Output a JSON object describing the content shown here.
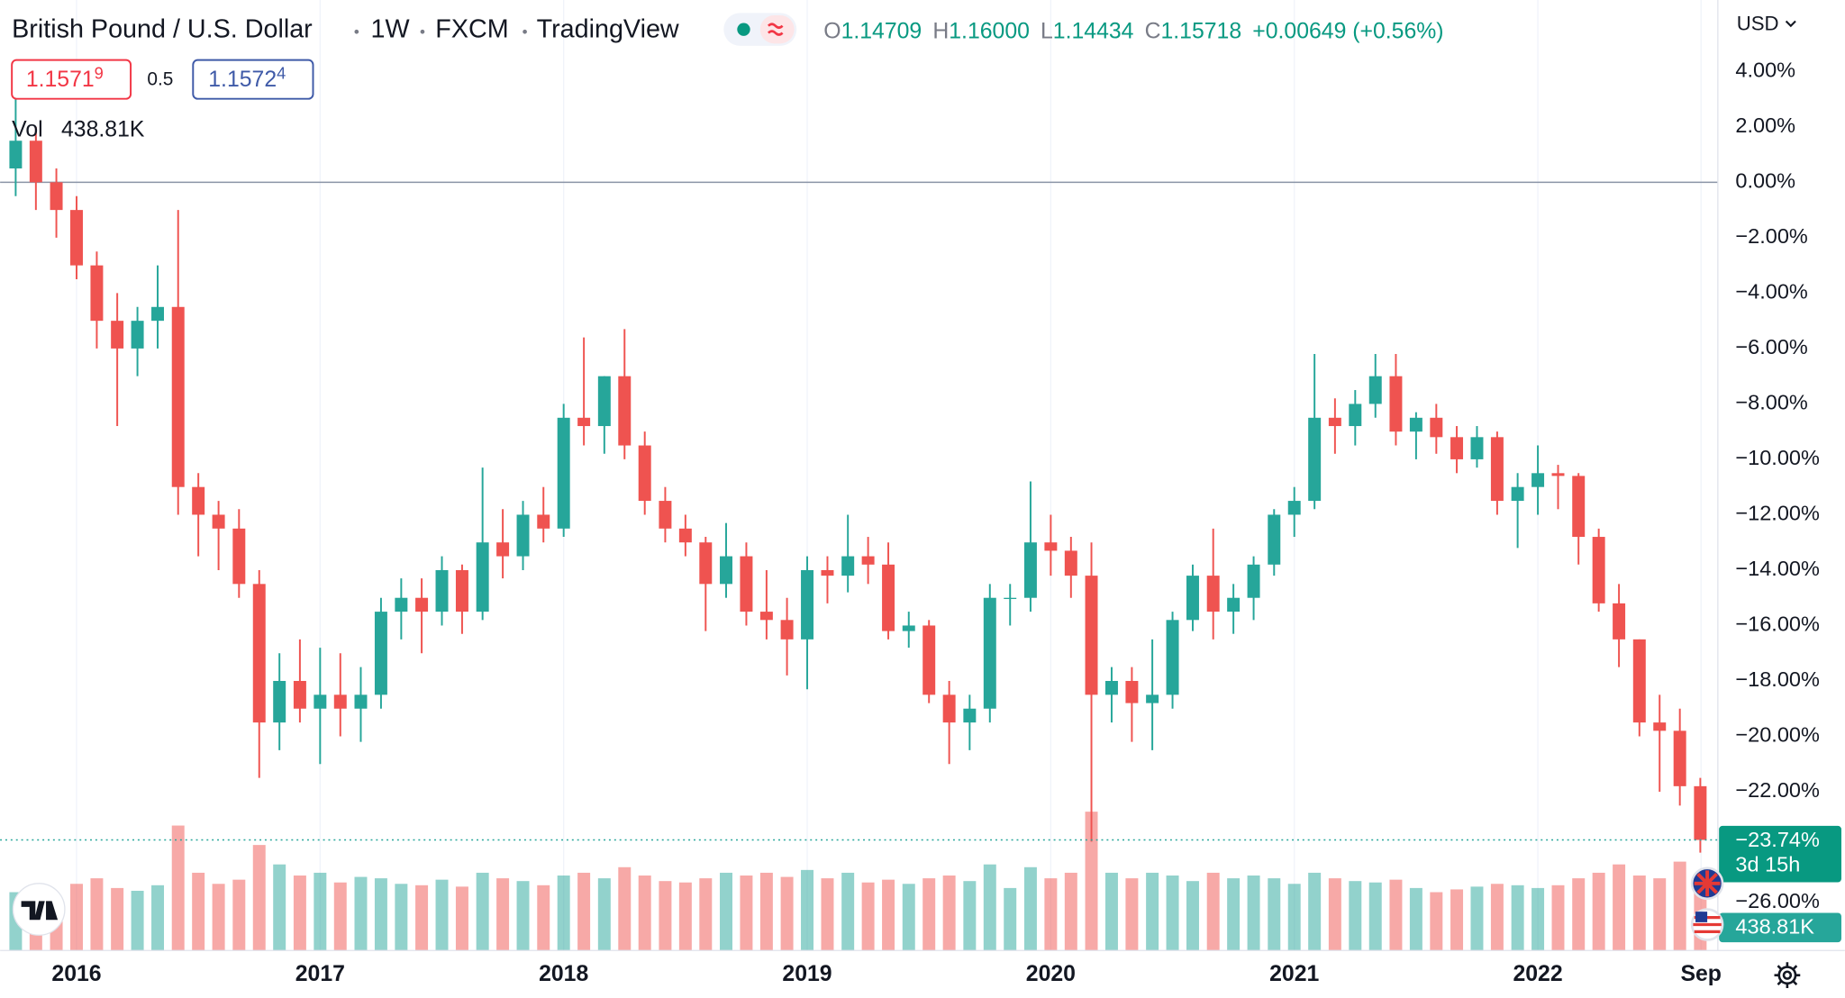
{
  "header": {
    "symbol": "British Pound / U.S. Dollar",
    "interval": "1W",
    "exchange": "FXCM",
    "source": "TradingView",
    "ohlc": [
      {
        "label": "O",
        "value": "1.14709"
      },
      {
        "label": "H",
        "value": "1.16000"
      },
      {
        "label": "L",
        "value": "1.14434"
      },
      {
        "label": "C",
        "value": "1.15718"
      }
    ],
    "change": "+0.00649 (+0.56%)",
    "sell": {
      "main": "1.1571",
      "sup": "9"
    },
    "spread": "0.5",
    "buy": {
      "main": "1.1572",
      "sup": "4"
    },
    "currency": "USD"
  },
  "chart_data": {
    "type": "candlestick",
    "colors": {
      "up": "#26a69a",
      "down": "#ef5350"
    },
    "x": [
      2015.75,
      2015.833,
      2015.917,
      2016,
      2016.083,
      2016.167,
      2016.25,
      2016.333,
      2016.417,
      2016.5,
      2016.583,
      2016.667,
      2016.75,
      2016.833,
      2016.917,
      2017,
      2017.083,
      2017.167,
      2017.25,
      2017.333,
      2017.417,
      2017.5,
      2017.583,
      2017.667,
      2017.75,
      2017.833,
      2017.917,
      2018,
      2018.083,
      2018.167,
      2018.25,
      2018.333,
      2018.417,
      2018.5,
      2018.583,
      2018.667,
      2018.75,
      2018.833,
      2018.917,
      2019,
      2019.083,
      2019.167,
      2019.25,
      2019.333,
      2019.417,
      2019.5,
      2019.583,
      2019.667,
      2019.75,
      2019.833,
      2019.917,
      2020,
      2020.083,
      2020.167,
      2020.25,
      2020.333,
      2020.417,
      2020.5,
      2020.583,
      2020.667,
      2020.75,
      2020.833,
      2020.917,
      2021,
      2021.083,
      2021.167,
      2021.25,
      2021.333,
      2021.417,
      2021.5,
      2021.583,
      2021.667,
      2021.75,
      2021.833,
      2021.917,
      2022,
      2022.083,
      2022.167,
      2022.25,
      2022.333,
      2022.417,
      2022.5,
      2022.583,
      2022.667
    ],
    "open": [
      0.5,
      1.5,
      0,
      -1,
      -3,
      -5,
      -6,
      -5,
      -4.5,
      -11,
      -12,
      -12.5,
      -14.5,
      -19.5,
      -18,
      -19,
      -18.5,
      -19,
      -18.5,
      -15.5,
      -15,
      -15.5,
      -14,
      -15.5,
      -13,
      -13.5,
      -12,
      -12.5,
      -8.5,
      -8.8,
      -7,
      -9.5,
      -11.5,
      -12.5,
      -13,
      -14.5,
      -13.5,
      -15.5,
      -15.8,
      -16.5,
      -14,
      -14.2,
      -13.5,
      -13.8,
      -16.2,
      -16,
      -18.5,
      -19.5,
      -19,
      -15,
      -15,
      -13,
      -13.3,
      -14.2,
      -18.5,
      -18,
      -18.8,
      -18.5,
      -15.8,
      -14.2,
      -15.5,
      -15,
      -13.8,
      -12,
      -11.5,
      -8.5,
      -8.8,
      -8,
      -7,
      -9,
      -8.5,
      -9.2,
      -10,
      -9.2,
      -11.5,
      -11,
      -10.5,
      -10.6,
      -12.8,
      -15.2,
      -16.5,
      -19.5,
      -19.8,
      -21.8
    ],
    "high": [
      3,
      2,
      0.5,
      -0.5,
      -2.5,
      -4,
      -4.5,
      -3,
      -1,
      -10.5,
      -11.5,
      -11.8,
      -14,
      -17,
      -16.5,
      -16.8,
      -17,
      -17.5,
      -15,
      -14.3,
      -14.3,
      -13.5,
      -13.8,
      -10.3,
      -11.8,
      -11.5,
      -11,
      -8,
      -5.6,
      -7,
      -5.3,
      -9,
      -11,
      -12,
      -12.8,
      -12.3,
      -13,
      -14,
      -15,
      -13.5,
      -13.5,
      -12,
      -12.8,
      -13,
      -15.5,
      -15.8,
      -18,
      -18.5,
      -14.5,
      -14.5,
      -10.8,
      -12,
      -12.8,
      -13,
      -17.5,
      -17.5,
      -16.5,
      -15.5,
      -13.8,
      -12.5,
      -14.5,
      -13.5,
      -11.8,
      -11,
      -6.2,
      -7.8,
      -7.5,
      -6.2,
      -6.2,
      -8.3,
      -8,
      -8.8,
      -8.8,
      -9,
      -10.5,
      -9.5,
      -10.2,
      -10.5,
      -12.5,
      -14.5,
      -16.5,
      -18.5,
      -19,
      -21.5
    ],
    "low": [
      -0.5,
      -1,
      -2,
      -3.5,
      -6,
      -8.8,
      -7,
      -6,
      -12,
      -13.5,
      -14,
      -15,
      -21.5,
      -20.5,
      -19.5,
      -21,
      -20,
      -20.2,
      -19,
      -16.5,
      -17,
      -16,
      -16.3,
      -15.8,
      -14.3,
      -14,
      -13,
      -12.8,
      -9.5,
      -9.8,
      -10,
      -12,
      -13,
      -13.5,
      -16.2,
      -15,
      -16,
      -16.5,
      -17.8,
      -18.3,
      -15.2,
      -14.8,
      -14.5,
      -16.5,
      -16.8,
      -18.8,
      -21,
      -20.5,
      -19.5,
      -16,
      -15.5,
      -14.2,
      -15,
      -23.8,
      -19.5,
      -20.2,
      -20.5,
      -19,
      -16.2,
      -16.5,
      -16.3,
      -15.8,
      -14.2,
      -12.8,
      -11.8,
      -9.8,
      -9.5,
      -8.5,
      -9.5,
      -10,
      -9.8,
      -10.5,
      -10.3,
      -12,
      -13.2,
      -12,
      -11.8,
      -13.8,
      -15.5,
      -17.5,
      -20,
      -22,
      -22.5,
      -24.2
    ],
    "close": [
      1.5,
      0,
      -1,
      -3,
      -5,
      -6,
      -5,
      -4.5,
      -11,
      -12,
      -12.5,
      -14.5,
      -19.5,
      -18,
      -19,
      -18.5,
      -19,
      -18.5,
      -15.5,
      -15,
      -15.5,
      -14,
      -15.5,
      -13,
      -13.5,
      -12,
      -12.5,
      -8.5,
      -8.8,
      -7,
      -9.5,
      -11.5,
      -12.5,
      -13,
      -14.5,
      -13.5,
      -15.5,
      -15.8,
      -16.5,
      -14,
      -14.2,
      -13.5,
      -13.8,
      -16.2,
      -16,
      -18.5,
      -19.5,
      -19,
      -15,
      -15,
      -13,
      -13.3,
      -14.2,
      -18.5,
      -18,
      -18.8,
      -18.5,
      -15.8,
      -14.2,
      -15.5,
      -15,
      -13.8,
      -12,
      -11.5,
      -8.5,
      -8.8,
      -8,
      -7,
      -9,
      -8.5,
      -9.2,
      -10,
      -9.2,
      -11.5,
      -11,
      -10.5,
      -10.6,
      -12.8,
      -15.2,
      -16.5,
      -19.5,
      -19.8,
      -21.8,
      -23.74
    ],
    "volume": [
      420,
      380,
      350,
      480,
      520,
      450,
      430,
      470,
      900,
      560,
      480,
      510,
      760,
      620,
      540,
      560,
      490,
      530,
      520,
      480,
      470,
      510,
      460,
      560,
      520,
      500,
      470,
      540,
      560,
      520,
      600,
      540,
      500,
      490,
      520,
      560,
      540,
      560,
      530,
      580,
      520,
      560,
      490,
      510,
      480,
      520,
      540,
      500,
      620,
      450,
      600,
      520,
      560,
      1000,
      560,
      520,
      560,
      540,
      500,
      560,
      520,
      540,
      520,
      480,
      560,
      520,
      500,
      490,
      510,
      450,
      420,
      440,
      460,
      480,
      470,
      450,
      470,
      520,
      560,
      620,
      540,
      520,
      640,
      438.81
    ],
    "volume_title": "Vol",
    "volume_label": "438.81K",
    "price_label": "−23.74%",
    "countdown": "3d 15h",
    "xlim": [
      2015.686,
      2022.739
    ],
    "xticks": [
      2016,
      2017,
      2018,
      2019,
      2020,
      2021,
      2022,
      {
        "value": 2022.67,
        "label": "Sep"
      }
    ],
    "ylim": [
      -27.73,
      6.58
    ],
    "yticks": [
      {
        "value": 4,
        "label": "4.00%"
      },
      {
        "value": 2,
        "label": "2.00%"
      },
      {
        "value": 0,
        "label": "0.00%"
      },
      {
        "value": -2,
        "label": "−2.00%"
      },
      {
        "value": -4,
        "label": "−4.00%"
      },
      {
        "value": -6,
        "label": "−6.00%"
      },
      {
        "value": -8,
        "label": "−8.00%"
      },
      {
        "value": -10,
        "label": "−10.00%"
      },
      {
        "value": -12,
        "label": "−12.00%"
      },
      {
        "value": -14,
        "label": "−14.00%"
      },
      {
        "value": -16,
        "label": "−16.00%"
      },
      {
        "value": -18,
        "label": "−18.00%"
      },
      {
        "value": -20,
        "label": "−20.00%"
      },
      {
        "value": -22,
        "label": "−22.00%"
      },
      {
        "value": -26,
        "label": "−26.00%"
      }
    ],
    "y2lim": [
      0,
      1000
    ]
  }
}
